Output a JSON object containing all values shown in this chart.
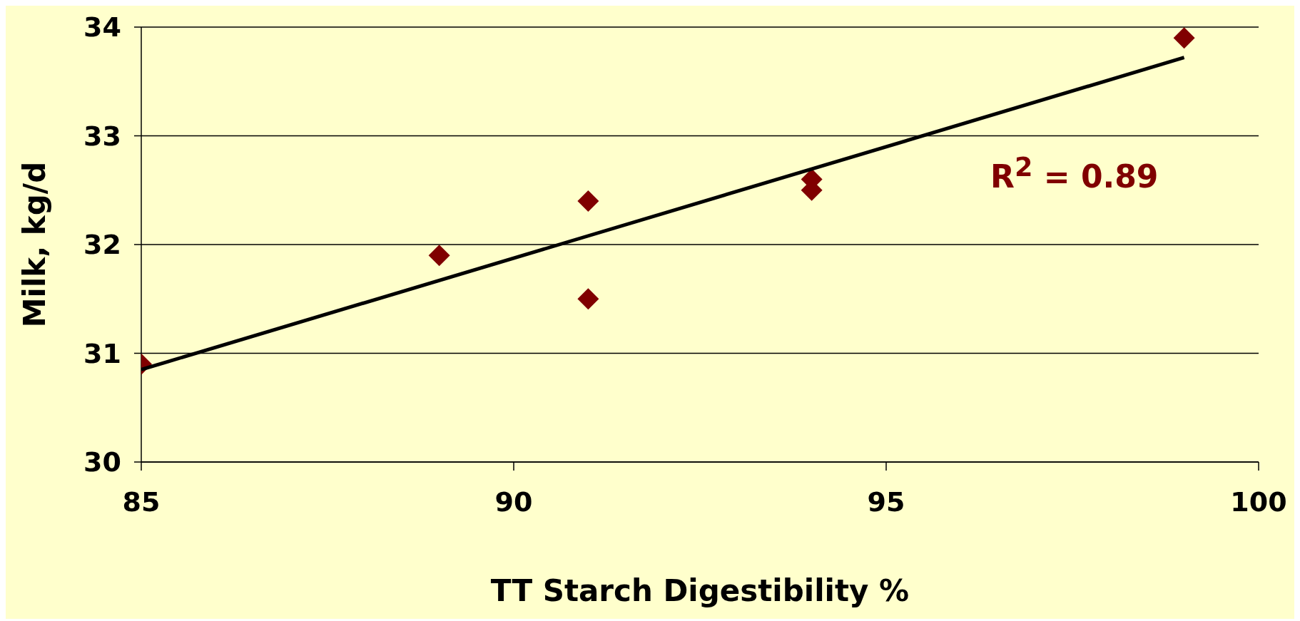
{
  "chart_data": {
    "type": "scatter",
    "xlabel": "TT Starch Digestibility %",
    "ylabel": "Milk, kg/d",
    "x": [
      85,
      89,
      91,
      91,
      94,
      94,
      99
    ],
    "series": [
      {
        "type": "scatter",
        "color": "#800000",
        "values": [
          30.9,
          31.9,
          32.4,
          31.5,
          32.6,
          32.5,
          33.9
        ]
      },
      {
        "type": "line",
        "color": "#000000",
        "x": [
          85,
          99
        ],
        "values": [
          30.85,
          33.72
        ],
        "marker": "none"
      }
    ],
    "marker": "diamond",
    "xlim": [
      85,
      100
    ],
    "xticks": [
      85,
      90,
      95,
      100
    ],
    "ylim": [
      30,
      34
    ],
    "yticks": [
      30,
      31,
      32,
      33,
      34
    ],
    "grid": "y",
    "legend": false,
    "annotations": [
      "R$^{2}$ = 0.89"
    ]
  }
}
